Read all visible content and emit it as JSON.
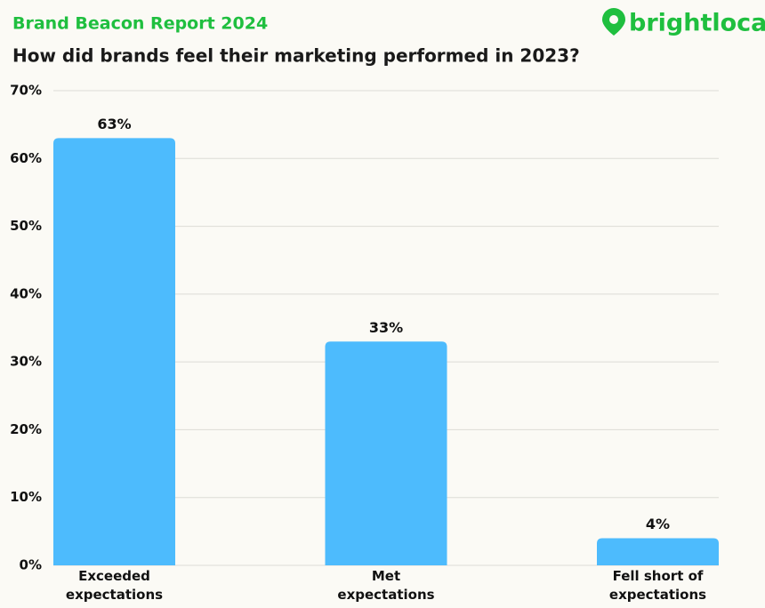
{
  "logo": "brightlocal",
  "chart_data": {
    "type": "bar",
    "subtitle": "Brand Beacon Report 2024",
    "title": "How did brands feel their marketing performed in 2023?",
    "categories": [
      "Exceeded expectations",
      "Met expectations",
      "Fell short of expectations"
    ],
    "values": [
      63,
      33,
      4
    ],
    "value_labels": [
      "63%",
      "33%",
      "4%"
    ],
    "color": "#4dbbfd",
    "ylim": [
      0,
      70
    ],
    "yticks": [
      {
        "value": 0,
        "label": "0%"
      },
      {
        "value": 10,
        "label": "10%"
      },
      {
        "value": 20,
        "label": "20%"
      },
      {
        "value": 30,
        "label": "30%"
      },
      {
        "value": 40,
        "label": "40%"
      },
      {
        "value": 50,
        "label": "50%"
      },
      {
        "value": 60,
        "label": "60%"
      },
      {
        "value": 70,
        "label": "70%"
      }
    ],
    "grid": true
  }
}
